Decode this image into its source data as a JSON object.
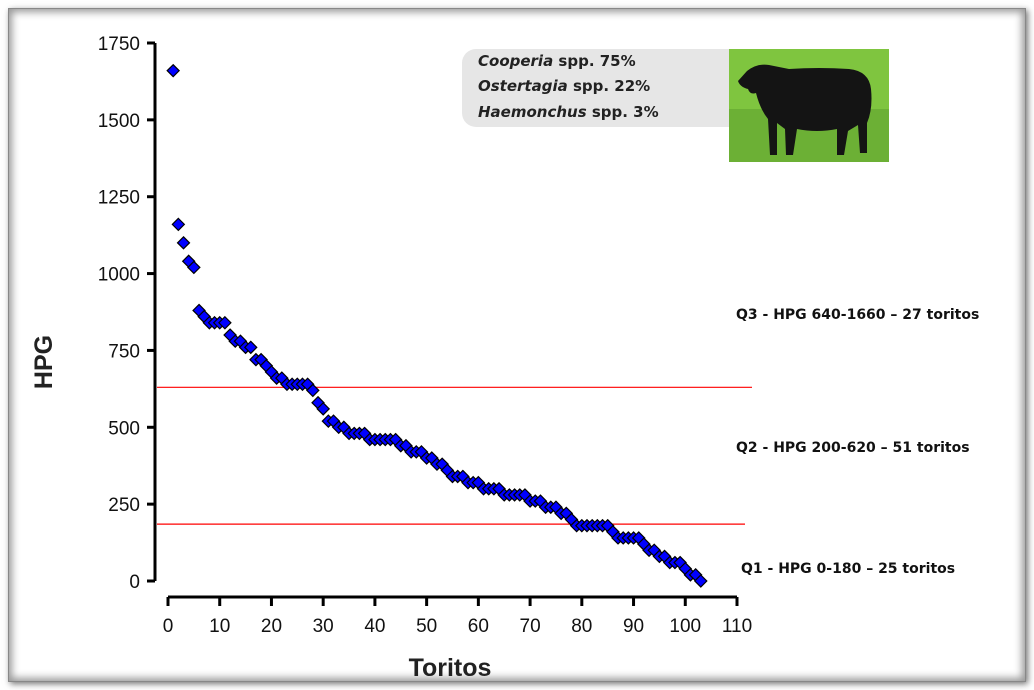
{
  "chart_data": {
    "type": "scatter",
    "xlabel": "Toritos",
    "ylabel": "HPG",
    "xlim": [
      0,
      110
    ],
    "ylim": [
      0,
      1750
    ],
    "xticks": [
      "0",
      "10",
      "20",
      "30",
      "40",
      "50",
      "60",
      "70",
      "80",
      "90",
      "100",
      "110"
    ],
    "yticks": [
      "0",
      "250",
      "500",
      "750",
      "1000",
      "1250",
      "1500",
      "1750"
    ],
    "grid": false,
    "marker": "diamond",
    "marker_color": "#0000ff",
    "x": [
      1,
      2,
      3,
      4,
      5,
      6,
      7,
      8,
      9,
      10,
      11,
      12,
      13,
      14,
      15,
      16,
      17,
      18,
      19,
      20,
      21,
      22,
      23,
      24,
      25,
      26,
      27,
      28,
      29,
      30,
      31,
      32,
      33,
      34,
      35,
      36,
      37,
      38,
      39,
      40,
      41,
      42,
      43,
      44,
      45,
      46,
      47,
      48,
      49,
      50,
      51,
      52,
      53,
      54,
      55,
      56,
      57,
      58,
      59,
      60,
      61,
      62,
      63,
      64,
      65,
      66,
      67,
      68,
      69,
      70,
      71,
      72,
      73,
      74,
      75,
      76,
      77,
      78,
      79,
      80,
      81,
      82,
      83,
      84,
      85,
      86,
      87,
      88,
      89,
      90,
      91,
      92,
      93,
      94,
      95,
      96,
      97,
      98,
      99,
      100,
      101,
      102,
      103
    ],
    "y": [
      1660,
      1160,
      1100,
      1040,
      1020,
      880,
      860,
      840,
      840,
      840,
      840,
      800,
      780,
      780,
      760,
      760,
      720,
      720,
      700,
      680,
      660,
      660,
      640,
      640,
      640,
      640,
      640,
      620,
      580,
      560,
      520,
      520,
      500,
      500,
      480,
      480,
      480,
      480,
      460,
      460,
      460,
      460,
      460,
      460,
      440,
      440,
      420,
      420,
      420,
      400,
      400,
      380,
      380,
      360,
      340,
      340,
      340,
      320,
      320,
      320,
      300,
      300,
      300,
      300,
      280,
      280,
      280,
      280,
      280,
      260,
      260,
      260,
      240,
      240,
      240,
      220,
      220,
      200,
      180,
      180,
      180,
      180,
      180,
      180,
      180,
      160,
      140,
      140,
      140,
      140,
      140,
      120,
      100,
      100,
      80,
      80,
      60,
      60,
      60,
      40,
      20,
      20,
      0
    ],
    "reference_lines": [
      {
        "y": 630,
        "color": "#ff0000"
      },
      {
        "y": 185,
        "color": "#ff0000"
      }
    ],
    "annotations": {
      "q3": "Q3 - HPG 640-1660 – 27 toritos",
      "q2": "Q2 - HPG 200-620 – 51 toritos",
      "q1": "Q1 - HPG 0-180 – 25 toritos"
    },
    "legend": [
      {
        "genus": "Cooperia",
        "suffix": " spp. 75%"
      },
      {
        "genus": "Ostertagia",
        "suffix": " spp. 22%"
      },
      {
        "genus": "Haemonchus",
        "suffix": " spp. 3%"
      }
    ]
  }
}
